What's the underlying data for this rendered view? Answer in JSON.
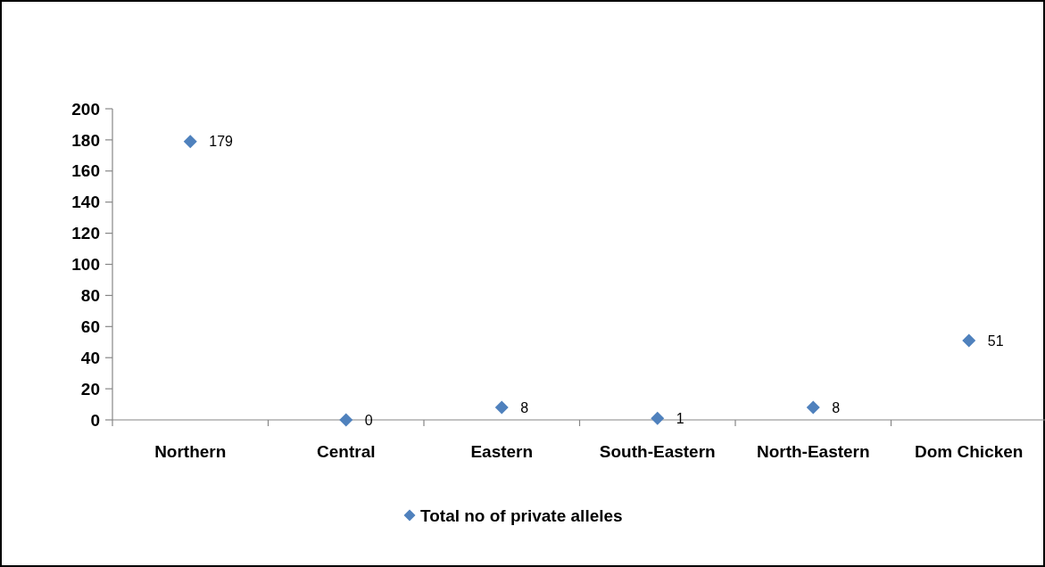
{
  "chart_data": {
    "type": "scatter",
    "categories": [
      "Northern",
      "Central",
      "Eastern",
      "South-Eastern",
      "North-Eastern",
      "Dom Chicken"
    ],
    "series": [
      {
        "name": "Total no of private alleles",
        "color": "#4f81bd",
        "values": [
          179,
          0,
          8,
          1,
          8,
          51
        ]
      }
    ],
    "ylim": [
      0,
      200
    ],
    "yticks": [
      0,
      20,
      40,
      60,
      80,
      100,
      120,
      140,
      160,
      180,
      200
    ],
    "marker": "diamond",
    "data_labels": true,
    "legend": "bottom"
  }
}
